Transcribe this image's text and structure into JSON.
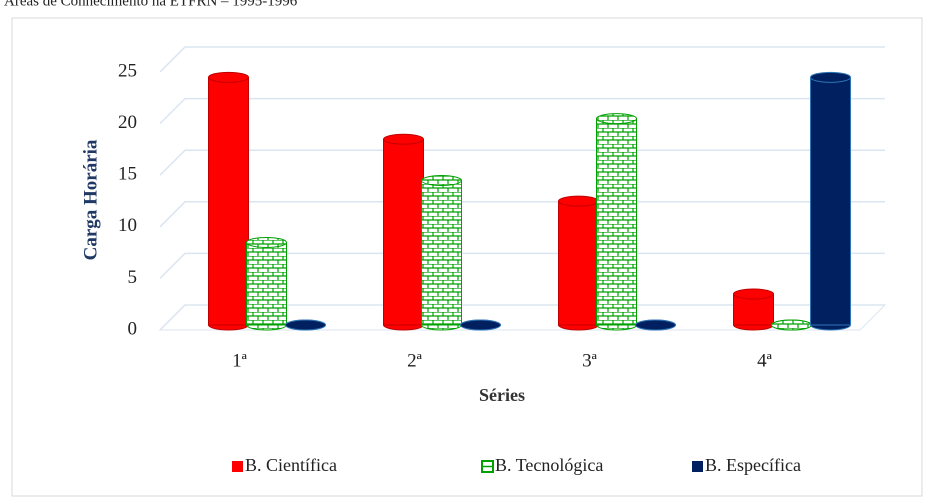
{
  "chart_data": {
    "type": "bar",
    "title": "Áreas de Conhecimento na ETFRN – 1995-1996",
    "x_label": "Séries",
    "y_label": "Carga Horária",
    "categories": [
      "1ª",
      "2ª",
      "3ª",
      "4ª"
    ],
    "series": [
      {
        "name": "B. Científica",
        "color": "#ff0000",
        "values": [
          24,
          18,
          12,
          3
        ]
      },
      {
        "name": "B. Tecnológica",
        "color": "#00a000",
        "values": [
          8,
          14,
          20,
          0
        ]
      },
      {
        "name": "B. Específica",
        "color": "#002060",
        "values": [
          0,
          0,
          0,
          24
        ]
      }
    ],
    "ylim": [
      0,
      25
    ],
    "yticks": [
      0,
      5,
      10,
      15,
      20,
      25
    ],
    "grid": true,
    "legend": "bottom"
  }
}
